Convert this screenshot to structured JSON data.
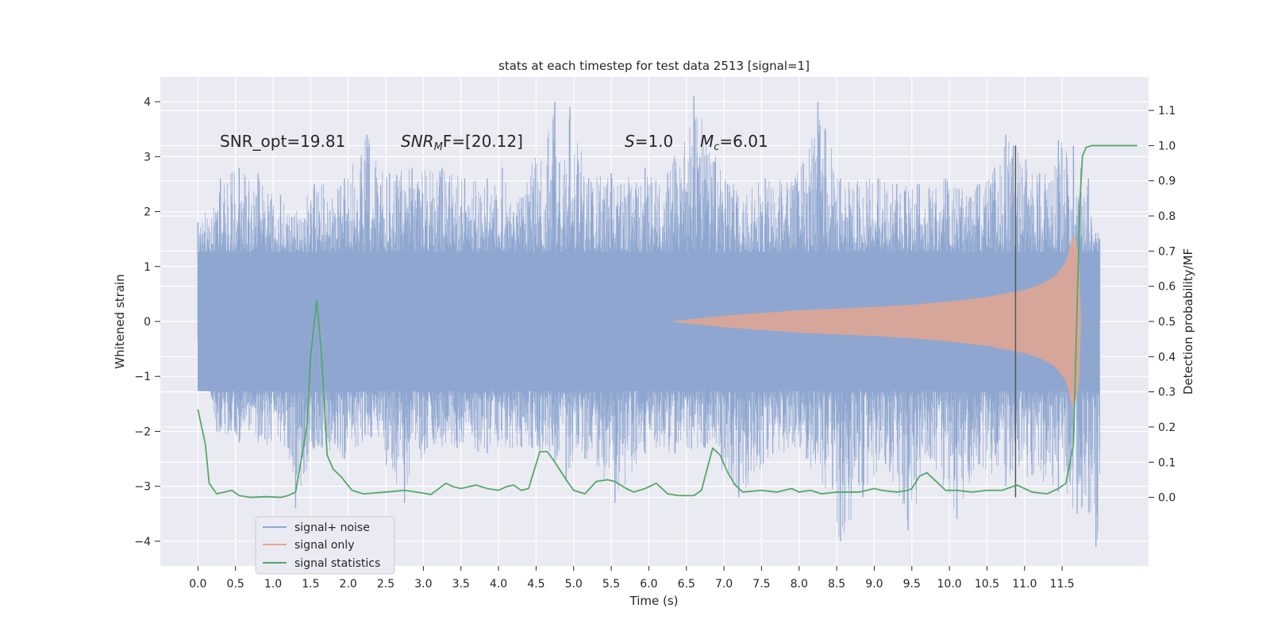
{
  "chart_data": {
    "type": "line",
    "title": "stats at each timestep for test data 2513 [signal=1]",
    "xlabel": "Time (s)",
    "ylabel_left": "Whitened strain",
    "ylabel_right": "Detection probability/MF",
    "xlim": [
      -0.5,
      12.65
    ],
    "ylim_left": [
      -4.45,
      4.45
    ],
    "ylim_right": [
      -0.195,
      1.195
    ],
    "x_ticks": [
      "0.0",
      "0.5",
      "1.0",
      "1.5",
      "2.0",
      "2.5",
      "3.0",
      "3.5",
      "4.0",
      "4.5",
      "5.0",
      "5.5",
      "6.0",
      "6.5",
      "7.0",
      "7.5",
      "8.0",
      "8.5",
      "9.0",
      "9.5",
      "10.0",
      "10.5",
      "11.0",
      "11.5"
    ],
    "y_ticks_left": [
      "4",
      "3",
      "2",
      "1",
      "0",
      "−1",
      "−2",
      "−3",
      "−4"
    ],
    "y_ticks_right": [
      "1.1",
      "1.0",
      "0.9",
      "0.8",
      "0.7",
      "0.6",
      "0.5",
      "0.4",
      "0.3",
      "0.2",
      "0.1",
      "0.0"
    ],
    "grid": true,
    "legend_position": "lower-left",
    "annotations": {
      "snr_opt": "SNR_opt=19.81",
      "snr_mf_label": "SNR",
      "snr_mf_sub": "M",
      "snr_mf_rest": "F=[20.12]",
      "s_label": "S",
      "s_value": "=1.0",
      "mc_label": "M",
      "mc_sub": "c",
      "mc_value": "=6.01"
    },
    "colors": {
      "background": "#eaeaf2",
      "grid": "#ffffff",
      "signal_noise": "#8fa7d0",
      "signal_only": "#e8a68d",
      "statistics": "#55a868",
      "marker": "#555555"
    },
    "series": [
      {
        "name": "signal+ noise",
        "axis": "left",
        "x_range": [
          0.0,
          12.0
        ],
        "envelope_typical": 2.0,
        "peaks_upper": [
          [
            0.0,
            1.8
          ],
          [
            0.3,
            2.6
          ],
          [
            0.55,
            2.8
          ],
          [
            0.8,
            2.7
          ],
          [
            1.1,
            2.3
          ],
          [
            1.25,
            1.9
          ],
          [
            1.55,
            2.5
          ],
          [
            1.95,
            2.6
          ],
          [
            2.25,
            3.4
          ],
          [
            2.55,
            2.7
          ],
          [
            2.85,
            2.8
          ],
          [
            3.25,
            2.8
          ],
          [
            3.55,
            2.6
          ],
          [
            3.85,
            2.6
          ],
          [
            4.05,
            2.8
          ],
          [
            4.2,
            2.0
          ],
          [
            4.75,
            4.0
          ],
          [
            4.95,
            3.9
          ],
          [
            5.2,
            2.6
          ],
          [
            5.5,
            2.7
          ],
          [
            5.95,
            2.8
          ],
          [
            6.25,
            2.7
          ],
          [
            6.6,
            4.1
          ],
          [
            7.05,
            2.5
          ],
          [
            7.55,
            2.6
          ],
          [
            7.95,
            2.6
          ],
          [
            8.25,
            4.0
          ],
          [
            8.55,
            2.6
          ],
          [
            9.05,
            2.6
          ],
          [
            9.3,
            2.5
          ],
          [
            9.6,
            2.5
          ],
          [
            9.95,
            2.6
          ],
          [
            10.4,
            2.5
          ],
          [
            10.6,
            2.8
          ],
          [
            10.75,
            3.4
          ],
          [
            10.85,
            3.2
          ],
          [
            11.2,
            2.7
          ],
          [
            11.45,
            3.3
          ],
          [
            11.65,
            3.2
          ],
          [
            11.85,
            2.6
          ],
          [
            12.0,
            1.5
          ]
        ],
        "peaks_lower": [
          [
            0.0,
            -0.3
          ],
          [
            0.25,
            -2.0
          ],
          [
            0.55,
            -2.2
          ],
          [
            1.2,
            -2.3
          ],
          [
            1.3,
            -3.4
          ],
          [
            1.55,
            -2.3
          ],
          [
            1.95,
            -2.5
          ],
          [
            2.3,
            -2.1
          ],
          [
            2.75,
            -3.3
          ],
          [
            3.05,
            -2.3
          ],
          [
            3.45,
            -2.3
          ],
          [
            3.85,
            -2.4
          ],
          [
            4.45,
            -2.3
          ],
          [
            4.9,
            -2.9
          ],
          [
            5.15,
            -2.5
          ],
          [
            5.55,
            -3.3
          ],
          [
            5.95,
            -2.4
          ],
          [
            6.35,
            -2.4
          ],
          [
            6.75,
            -2.3
          ],
          [
            7.2,
            -3.2
          ],
          [
            7.65,
            -2.4
          ],
          [
            8.1,
            -2.5
          ],
          [
            8.55,
            -4.0
          ],
          [
            8.85,
            -3.2
          ],
          [
            9.15,
            -2.6
          ],
          [
            9.45,
            -3.8
          ],
          [
            9.75,
            -2.5
          ],
          [
            10.1,
            -3.6
          ],
          [
            10.4,
            -2.6
          ],
          [
            10.75,
            -3.0
          ],
          [
            11.1,
            -2.8
          ],
          [
            11.45,
            -3.1
          ],
          [
            11.7,
            -3.5
          ],
          [
            11.95,
            -4.1
          ]
        ]
      },
      {
        "name": "signal only",
        "axis": "left",
        "start": 6.3,
        "end": 11.75,
        "envelope": [
          [
            6.3,
            0.0
          ],
          [
            7.0,
            0.1
          ],
          [
            8.0,
            0.2
          ],
          [
            9.0,
            0.26
          ],
          [
            9.5,
            0.3
          ],
          [
            10.0,
            0.36
          ],
          [
            10.5,
            0.44
          ],
          [
            10.8,
            0.52
          ],
          [
            11.0,
            0.57
          ],
          [
            11.2,
            0.66
          ],
          [
            11.4,
            0.81
          ],
          [
            11.55,
            1.07
          ],
          [
            11.65,
            1.6
          ],
          [
            11.72,
            1.2
          ],
          [
            11.75,
            0.0
          ]
        ]
      },
      {
        "name": "signal statistics",
        "axis": "right",
        "points": [
          [
            0.0,
            0.25
          ],
          [
            0.1,
            0.15
          ],
          [
            0.15,
            0.04
          ],
          [
            0.25,
            0.01
          ],
          [
            0.35,
            0.015
          ],
          [
            0.45,
            0.02
          ],
          [
            0.55,
            0.005
          ],
          [
            0.7,
            0.0
          ],
          [
            0.9,
            0.002
          ],
          [
            1.1,
            0.0
          ],
          [
            1.2,
            0.005
          ],
          [
            1.3,
            0.015
          ],
          [
            1.45,
            0.2
          ],
          [
            1.5,
            0.4
          ],
          [
            1.58,
            0.56
          ],
          [
            1.64,
            0.42
          ],
          [
            1.72,
            0.12
          ],
          [
            1.8,
            0.08
          ],
          [
            1.9,
            0.06
          ],
          [
            2.05,
            0.02
          ],
          [
            2.2,
            0.01
          ],
          [
            2.5,
            0.015
          ],
          [
            2.75,
            0.02
          ],
          [
            3.0,
            0.012
          ],
          [
            3.1,
            0.008
          ],
          [
            3.3,
            0.04
          ],
          [
            3.4,
            0.03
          ],
          [
            3.5,
            0.025
          ],
          [
            3.6,
            0.03
          ],
          [
            3.7,
            0.035
          ],
          [
            3.85,
            0.025
          ],
          [
            4.0,
            0.02
          ],
          [
            4.1,
            0.03
          ],
          [
            4.2,
            0.035
          ],
          [
            4.3,
            0.02
          ],
          [
            4.4,
            0.025
          ],
          [
            4.55,
            0.13
          ],
          [
            4.65,
            0.13
          ],
          [
            4.75,
            0.1
          ],
          [
            4.9,
            0.05
          ],
          [
            5.0,
            0.02
          ],
          [
            5.15,
            0.01
          ],
          [
            5.3,
            0.045
          ],
          [
            5.45,
            0.05
          ],
          [
            5.55,
            0.045
          ],
          [
            5.7,
            0.025
          ],
          [
            5.8,
            0.015
          ],
          [
            5.95,
            0.025
          ],
          [
            6.1,
            0.04
          ],
          [
            6.25,
            0.01
          ],
          [
            6.4,
            0.005
          ],
          [
            6.6,
            0.005
          ],
          [
            6.7,
            0.02
          ],
          [
            6.85,
            0.14
          ],
          [
            6.95,
            0.12
          ],
          [
            7.05,
            0.07
          ],
          [
            7.15,
            0.035
          ],
          [
            7.25,
            0.015
          ],
          [
            7.5,
            0.02
          ],
          [
            7.7,
            0.015
          ],
          [
            7.9,
            0.025
          ],
          [
            8.0,
            0.015
          ],
          [
            8.15,
            0.02
          ],
          [
            8.3,
            0.01
          ],
          [
            8.5,
            0.015
          ],
          [
            8.8,
            0.015
          ],
          [
            9.0,
            0.025
          ],
          [
            9.1,
            0.02
          ],
          [
            9.3,
            0.015
          ],
          [
            9.45,
            0.02
          ],
          [
            9.5,
            0.025
          ],
          [
            9.6,
            0.06
          ],
          [
            9.7,
            0.07
          ],
          [
            9.8,
            0.05
          ],
          [
            9.95,
            0.02
          ],
          [
            10.1,
            0.02
          ],
          [
            10.3,
            0.015
          ],
          [
            10.5,
            0.02
          ],
          [
            10.7,
            0.02
          ],
          [
            10.9,
            0.035
          ],
          [
            11.0,
            0.025
          ],
          [
            11.1,
            0.015
          ],
          [
            11.3,
            0.01
          ],
          [
            11.45,
            0.025
          ],
          [
            11.55,
            0.04
          ],
          [
            11.65,
            0.15
          ],
          [
            11.7,
            0.55
          ],
          [
            11.74,
            0.85
          ],
          [
            11.77,
            0.97
          ],
          [
            11.82,
            0.995
          ],
          [
            11.9,
            1.0
          ],
          [
            12.5,
            1.0
          ]
        ]
      }
    ],
    "marker_x": 10.88
  }
}
